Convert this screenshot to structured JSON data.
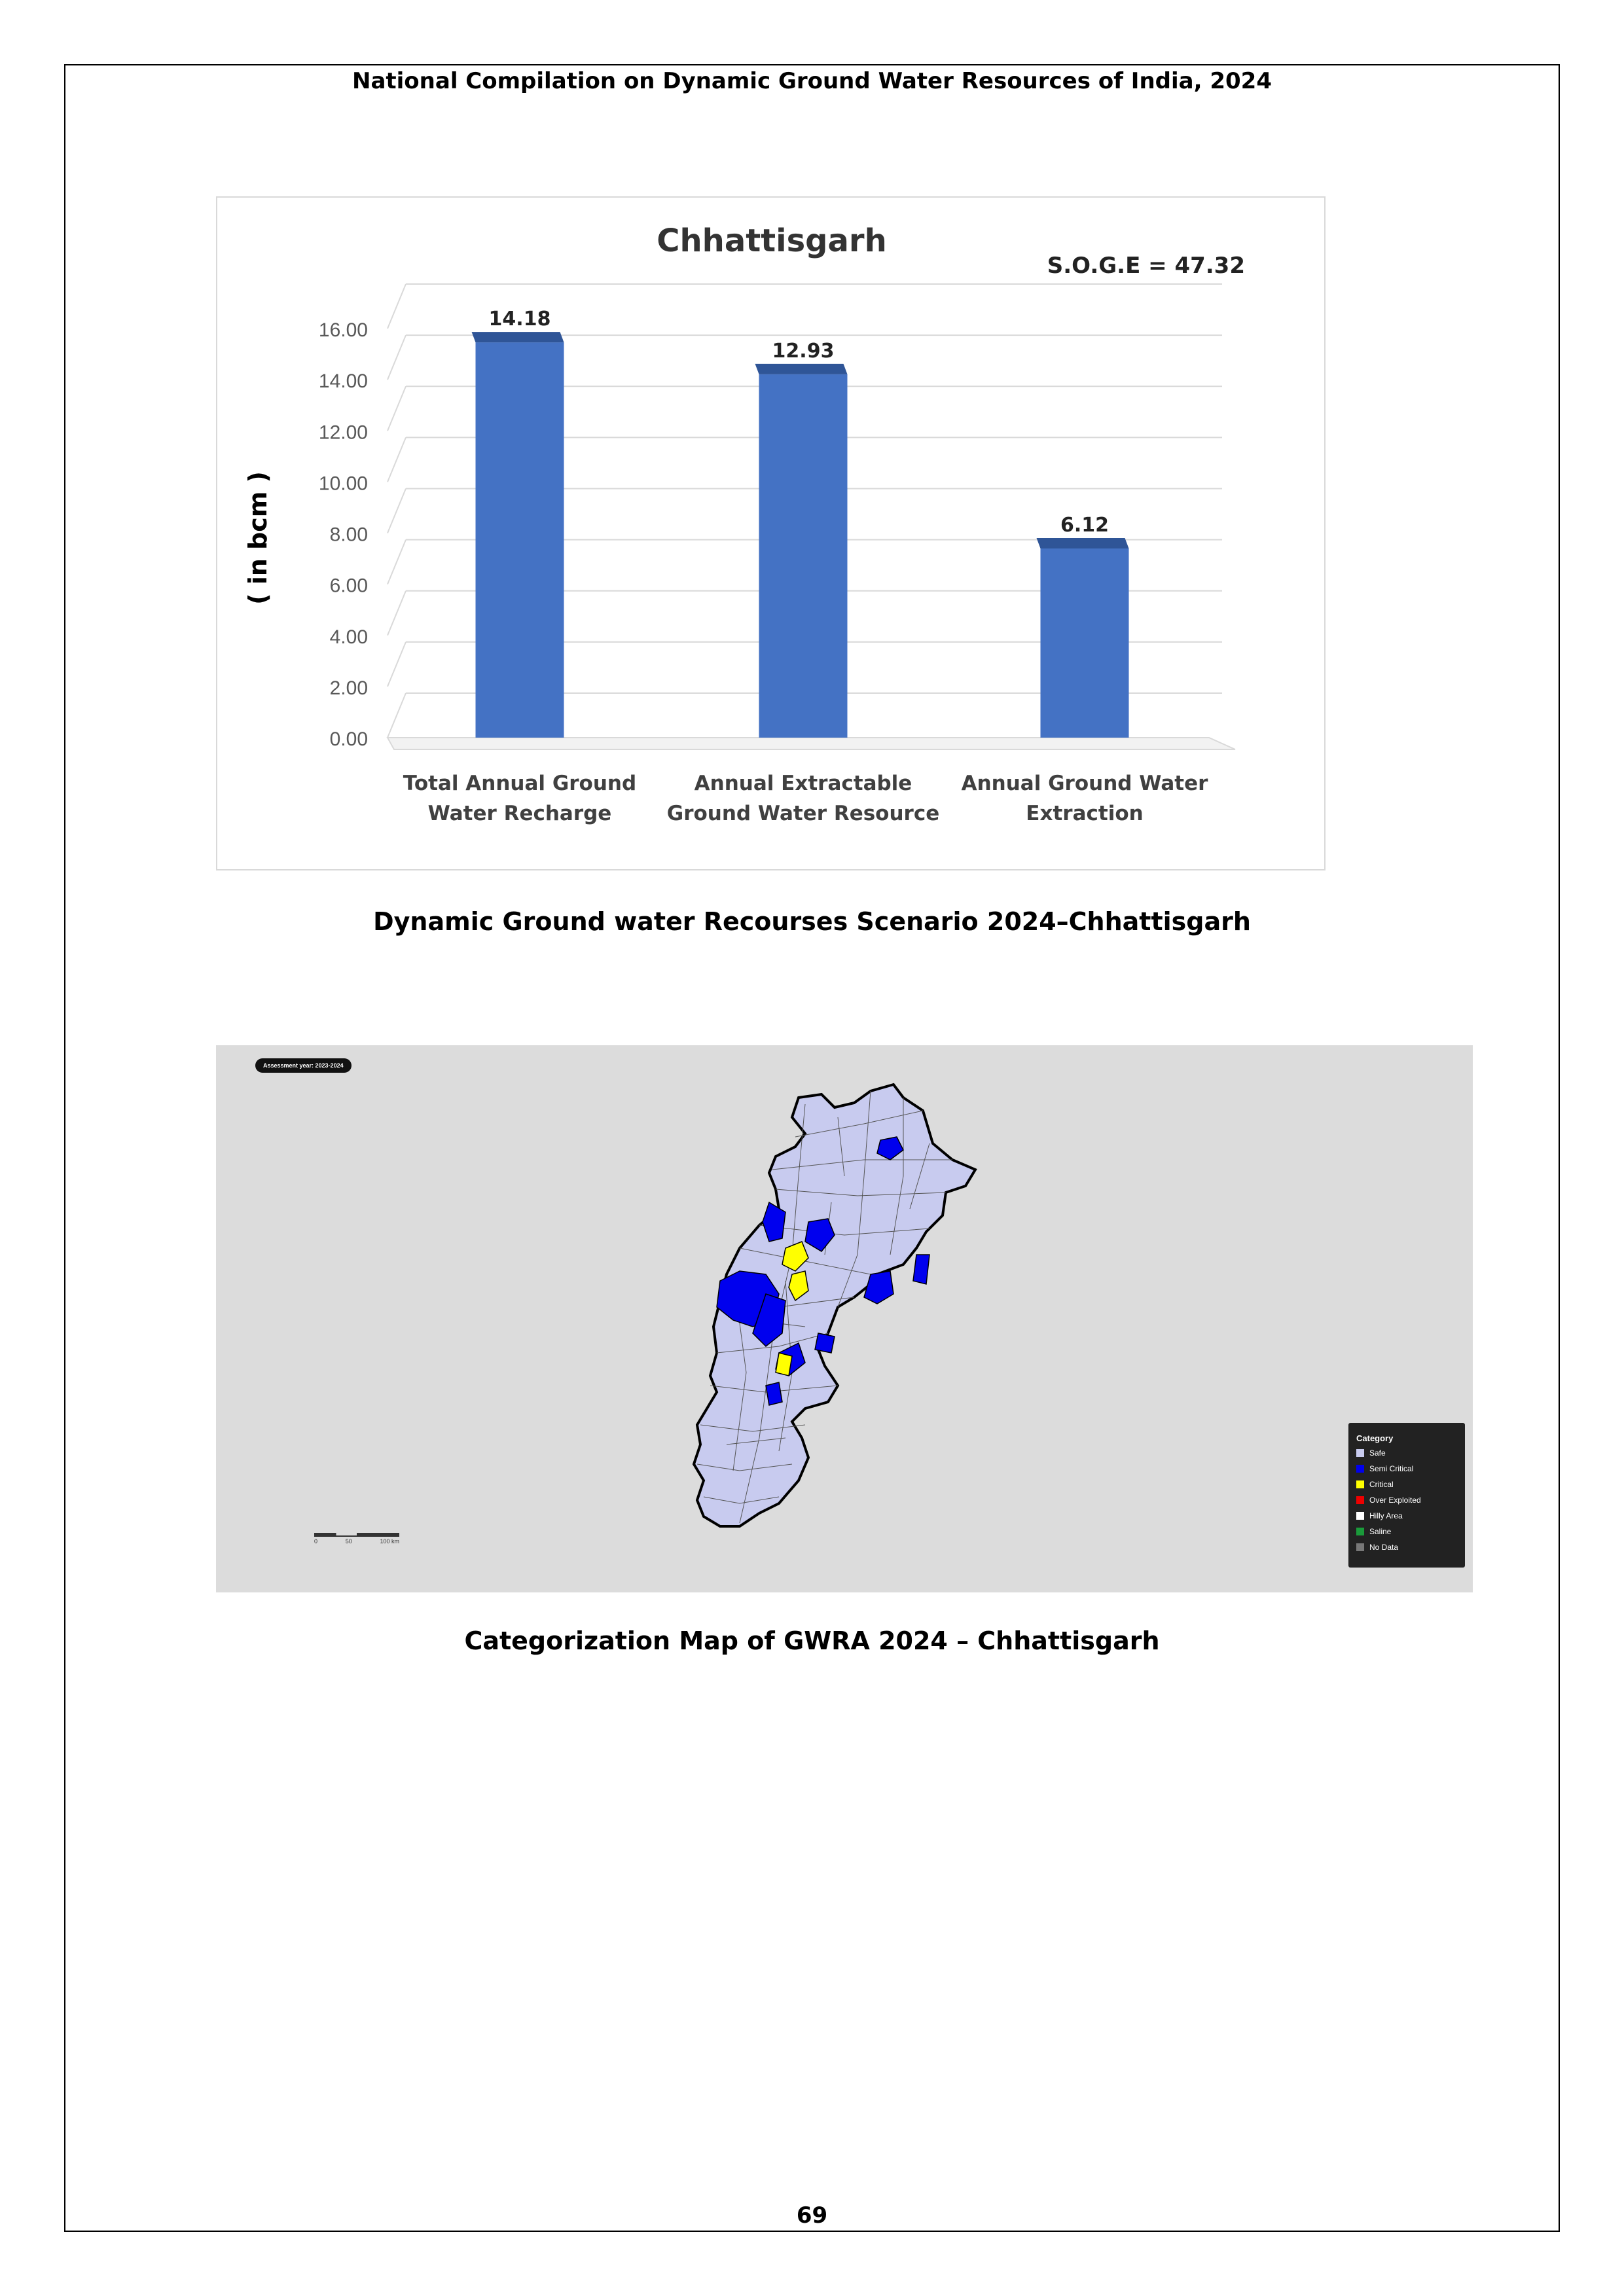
{
  "header": {
    "title": "National Compilation on Dynamic Ground Water Resources of India, 2024"
  },
  "chart_data": {
    "type": "bar",
    "title": "Chhattisgarh",
    "annotation": "S.O.G.E = 47.32",
    "ylabel": "( in bcm )",
    "xlabel": "",
    "ylim": [
      0,
      16
    ],
    "yticks": [
      "0.00",
      "2.00",
      "4.00",
      "6.00",
      "8.00",
      "10.00",
      "12.00",
      "14.00",
      "16.00"
    ],
    "categories": [
      [
        "Total Annual  Ground",
        "Water Recharge"
      ],
      [
        "Annual Extractable",
        "Ground Water Resource"
      ],
      [
        "Annual Ground Water",
        "Extraction"
      ]
    ],
    "values": [
      14.18,
      12.93,
      6.12
    ],
    "value_labels": [
      "14.18",
      "12.93",
      "6.12"
    ],
    "bar_color": "#4472c4",
    "bar_top_color": "#2f5597",
    "grid": true,
    "legend": "none"
  },
  "chart_caption": "Dynamic Ground water Recourses Scenario 2024–Chhattisgarh",
  "map": {
    "badge": "Assessment year: 2023-2024",
    "legend_title": "Category",
    "legend_items": [
      {
        "label": "Safe",
        "color": "#c8cbef"
      },
      {
        "label": "Semi Critical",
        "color": "#0000ee"
      },
      {
        "label": "Critical",
        "color": "#ffff00"
      },
      {
        "label": "Over Exploited",
        "color": "#ee0000"
      },
      {
        "label": "Hilly Area",
        "color": "#ffffff"
      },
      {
        "label": "Saline",
        "color": "#1a9a3a"
      },
      {
        "label": "No Data",
        "color": "#777777"
      }
    ],
    "scale_labels": [
      "0",
      "50",
      "100 km"
    ]
  },
  "map_caption": "Categorization Map of GWRA 2024 – Chhattisgarh",
  "page_number": "69"
}
